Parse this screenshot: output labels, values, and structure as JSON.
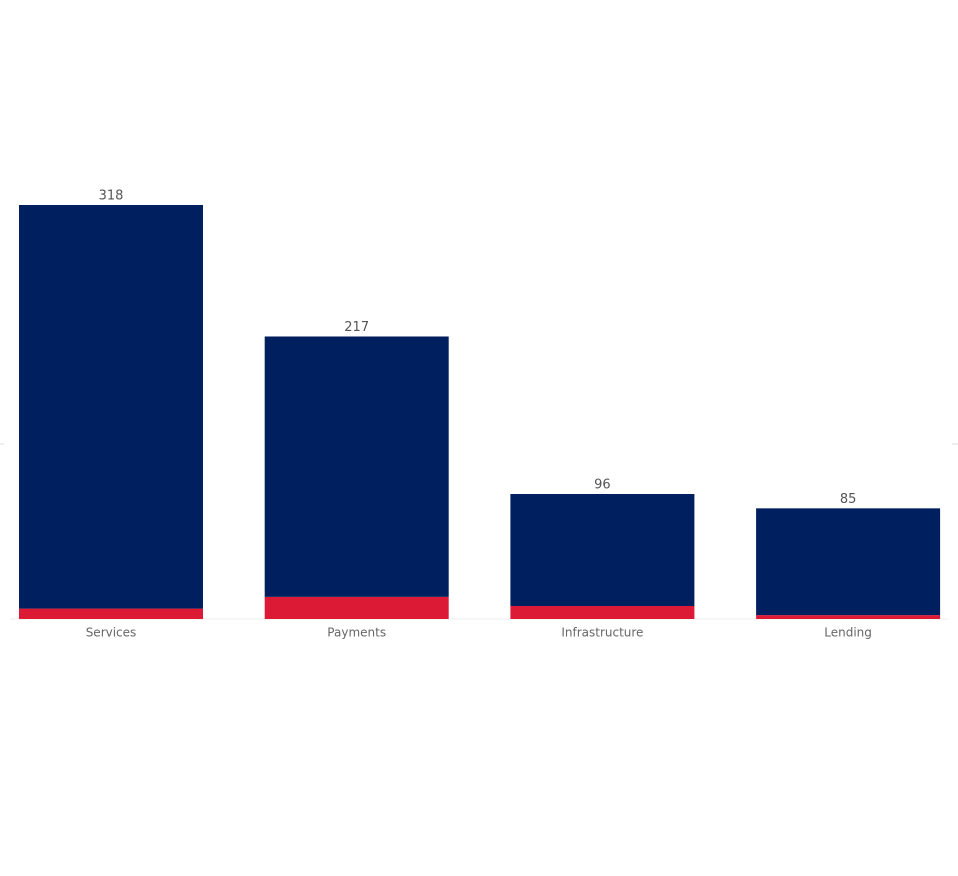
{
  "chart_data": {
    "type": "stacked_bar",
    "categories": [
      "Services",
      "Payments",
      "Infrastructure",
      "Lending"
    ],
    "series": [
      {
        "color": "#dc1a35",
        "values": [
          8,
          17,
          10,
          3
        ]
      },
      {
        "color": "#001f5e",
        "values": [
          310,
          200,
          86,
          82
        ]
      }
    ],
    "totals": [
      318,
      217,
      96,
      85
    ]
  }
}
